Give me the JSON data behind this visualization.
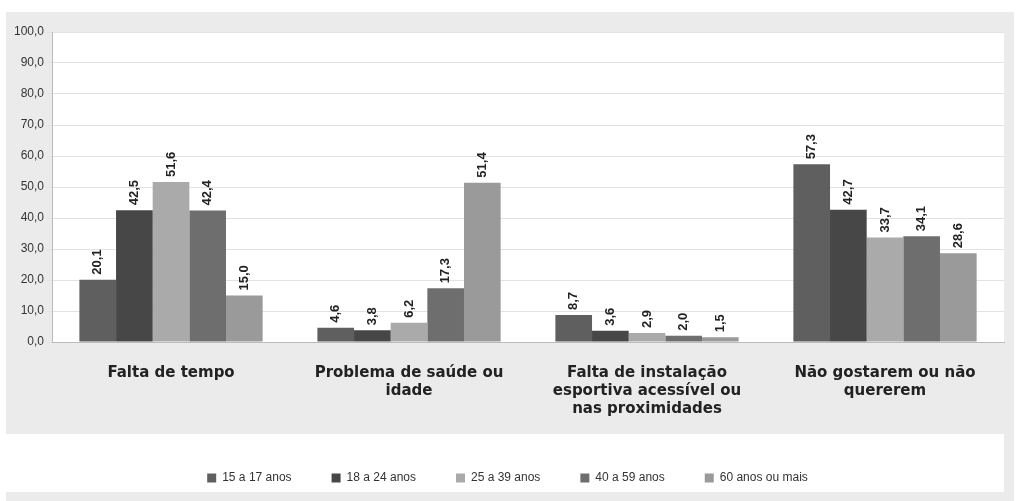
{
  "chart_data": {
    "type": "bar",
    "categories": [
      "Falta de tempo",
      "Problema de saúde ou idade",
      "Falta de instalação esportiva acessível ou nas proximidades",
      "Não gostarem ou não quererem"
    ],
    "series": [
      {
        "name": "15 a 17 anos",
        "color": "#5f5f5f",
        "values": [
          20.1,
          4.6,
          8.7,
          57.3
        ],
        "value_labels": [
          "20,1",
          "4,6",
          "8,7",
          "57,3"
        ]
      },
      {
        "name": "18 a 24 anos",
        "color": "#474747",
        "values": [
          42.5,
          3.8,
          3.6,
          42.7
        ],
        "value_labels": [
          "42,5",
          "3,8",
          "3,6",
          "42,7"
        ]
      },
      {
        "name": "25 a 39 anos",
        "color": "#aaaaaa",
        "values": [
          51.6,
          6.2,
          2.9,
          33.7
        ],
        "value_labels": [
          "51,6",
          "6,2",
          "2,9",
          "33,7"
        ]
      },
      {
        "name": "40 a 59 anos",
        "color": "#6e6e6e",
        "values": [
          42.4,
          17.3,
          2.0,
          34.1
        ],
        "value_labels": [
          "42,4",
          "17,3",
          "2,0",
          "34,1"
        ]
      },
      {
        "name": "60 anos ou mais",
        "color": "#9a9a9a",
        "values": [
          15.0,
          51.4,
          1.5,
          28.6
        ],
        "value_labels": [
          "15,0",
          "51,4",
          "1,5",
          "28,6"
        ]
      }
    ],
    "ylim": [
      0,
      100
    ],
    "yticks": [
      {
        "value": 0,
        "label": "0,0"
      },
      {
        "value": 10,
        "label": "10,0"
      },
      {
        "value": 20,
        "label": "20,0"
      },
      {
        "value": 30,
        "label": "30,0"
      },
      {
        "value": 40,
        "label": "40,0"
      },
      {
        "value": 50,
        "label": "50,0"
      },
      {
        "value": 60,
        "label": "60,0"
      },
      {
        "value": 70,
        "label": "70,0"
      },
      {
        "value": 80,
        "label": "80,0"
      },
      {
        "value": 90,
        "label": "90,0"
      },
      {
        "value": 100,
        "label": "100,0"
      }
    ],
    "grid": "y",
    "legend": "bottom"
  }
}
